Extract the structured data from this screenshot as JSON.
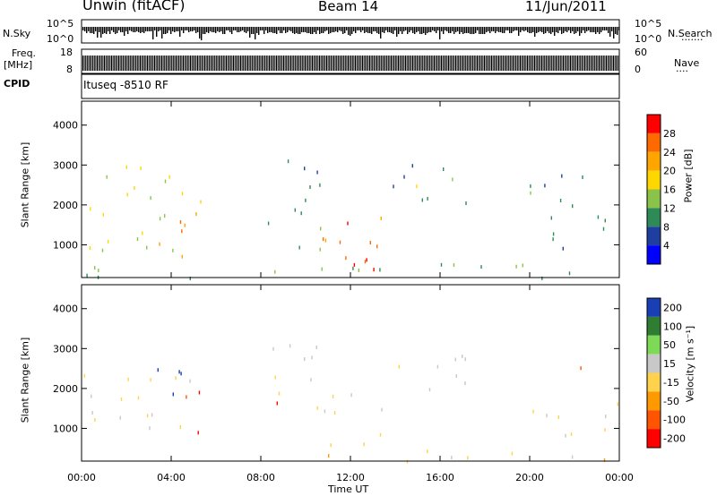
{
  "header": {
    "title_left": "Unwin (fitACF)",
    "title_center": "Beam 14",
    "title_right": "11/Jun/2011"
  },
  "panels": {
    "nsky": {
      "label": "N.Sky",
      "ticks_left": [
        "10^5",
        "10^0"
      ],
      "ticks_right": [
        "10^5",
        "10^0"
      ],
      "right_label": "N.Search",
      "right_dots": "·······"
    },
    "freq": {
      "label_top": "Freq.",
      "label_bottom": "[MHz]",
      "ticks_left": [
        "18",
        "8"
      ],
      "ticks_right": [
        "60",
        "0"
      ],
      "right_label": "Nave",
      "right_dots": "····"
    },
    "cpid": {
      "label": "CPID",
      "text": "Ituseq -8510 RF"
    }
  },
  "colorbars": {
    "power": {
      "label": "Power [dB]",
      "ticks": [
        "28",
        "24",
        "20",
        "16",
        "12",
        "8",
        "4"
      ],
      "colors": [
        "#0000ff",
        "#1e3fa0",
        "#2e8b57",
        "#8bc34a",
        "#ffd700",
        "#ffa500",
        "#ff6a00",
        "#ff0000"
      ]
    },
    "velocity": {
      "label": "Velocity [m s⁻¹]",
      "ticks": [
        "200",
        "100",
        "50",
        "15",
        "-15",
        "-50",
        "-100",
        "-200"
      ],
      "colors": [
        "#1a3fb4",
        "#2e7d32",
        "#7ed957",
        "#c8c8c8",
        "#ffd24d",
        "#ff9900",
        "#ff5500",
        "#ff0000"
      ]
    }
  },
  "axes": {
    "ylabel": "Slant Range [km]",
    "xlabel": "Time UT",
    "yticks": [
      "4000",
      "3000",
      "2000",
      "1000"
    ],
    "xticks": [
      "00:00",
      "04:00",
      "08:00",
      "12:00",
      "16:00",
      "20:00",
      "00:00"
    ]
  },
  "chart_data": [
    {
      "type": "heatmap",
      "quantity": "Power",
      "xlabel": "",
      "ylabel": "Slant Range [km]",
      "x_unit": "UT hour",
      "xlim": [
        0,
        24
      ],
      "ylim": [
        180,
        4600
      ],
      "color_range": [
        0,
        30
      ],
      "regions": [
        {
          "t": [
            0.3,
            5.3
          ],
          "r": [
            700,
            3000
          ],
          "value": 16
        },
        {
          "t": [
            4.0,
            5.6
          ],
          "r": [
            650,
            2000
          ],
          "value": 24
        },
        {
          "t": [
            8.3,
            10.8
          ],
          "r": [
            900,
            3200
          ],
          "value": 8
        },
        {
          "t": [
            10.6,
            13.6
          ],
          "r": [
            700,
            1800
          ],
          "value": 24
        },
        {
          "t": [
            11.3,
            13.4
          ],
          "r": [
            500,
            1400
          ],
          "value": 28
        },
        {
          "t": [
            12.3,
            14.0
          ],
          "r": [
            250,
            500
          ],
          "value": 28
        },
        {
          "t": [
            13.5,
            15.5
          ],
          "r": [
            2500,
            3300
          ],
          "value": 8
        },
        {
          "t": [
            14.5,
            17.3
          ],
          "r": [
            2000,
            3000
          ],
          "value": 12
        },
        {
          "t": [
            20.5,
            24.0
          ],
          "r": [
            800,
            1800
          ],
          "value": 8
        },
        {
          "t": [
            20.0,
            23.5
          ],
          "r": [
            2000,
            3000
          ],
          "value": 8
        },
        {
          "t": [
            0.0,
            24.0
          ],
          "r": [
            200,
            550
          ],
          "value": 12
        }
      ]
    },
    {
      "type": "heatmap",
      "quantity": "Velocity",
      "xlabel": "Time UT",
      "ylabel": "Slant Range [km]",
      "x_unit": "UT hour",
      "xlim": [
        0,
        24
      ],
      "ylim": [
        180,
        4600
      ],
      "color_range": [
        -200,
        200
      ],
      "regions": [
        {
          "t": [
            0.0,
            5.0
          ],
          "r": [
            1000,
            2500
          ],
          "value": 0
        },
        {
          "t": [
            3.3,
            5.0
          ],
          "r": [
            1500,
            2600
          ],
          "value": 200
        },
        {
          "t": [
            4.5,
            5.6
          ],
          "r": [
            800,
            2000
          ],
          "value": -180
        },
        {
          "t": [
            8.3,
            9.2
          ],
          "r": [
            1300,
            1800
          ],
          "value": -200
        },
        {
          "t": [
            8.0,
            11.0
          ],
          "r": [
            1800,
            3200
          ],
          "value": 0
        },
        {
          "t": [
            10.5,
            13.8
          ],
          "r": [
            600,
            1900
          ],
          "value": 0
        },
        {
          "t": [
            11.0,
            24.0
          ],
          "r": [
            200,
            500
          ],
          "value": -40
        },
        {
          "t": [
            13.8,
            17.3
          ],
          "r": [
            2000,
            3100
          ],
          "value": 0
        },
        {
          "t": [
            20.0,
            24.0
          ],
          "r": [
            800,
            1800
          ],
          "value": 0
        },
        {
          "t": [
            21.3,
            22.6
          ],
          "r": [
            2400,
            2700
          ],
          "value": -150
        }
      ]
    }
  ]
}
